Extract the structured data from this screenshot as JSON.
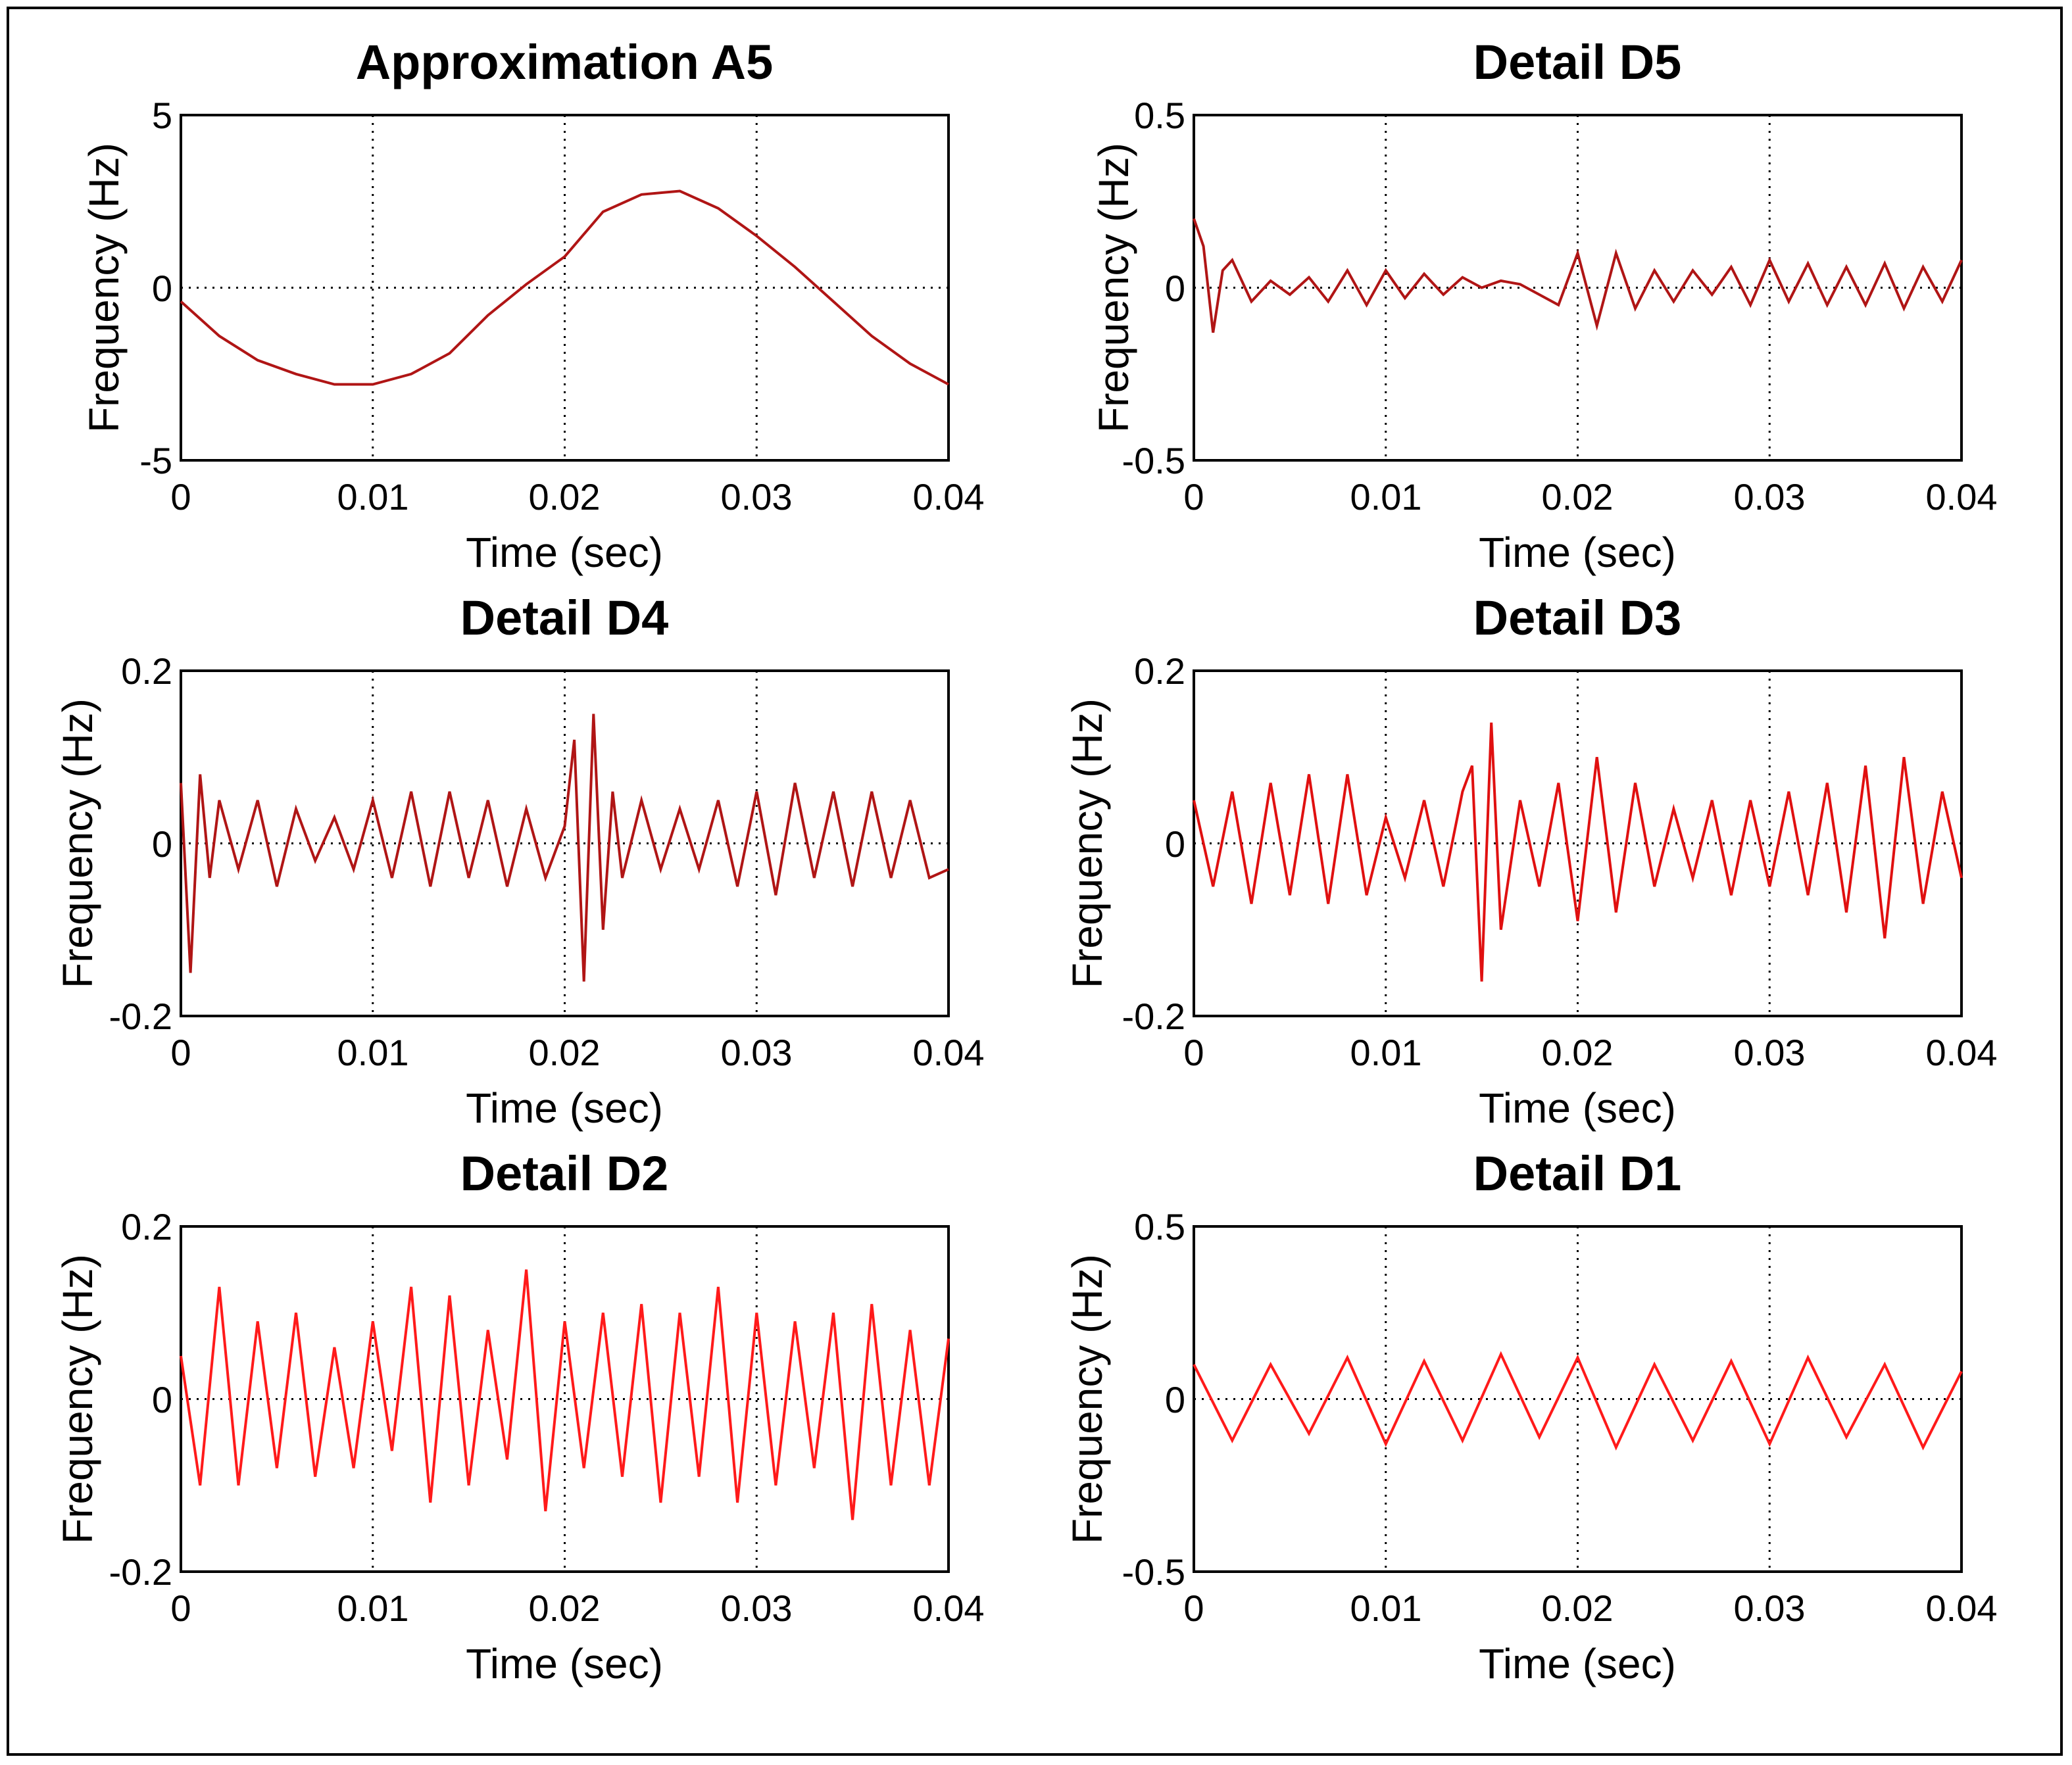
{
  "chart_data": [
    {
      "type": "line",
      "title": "Approximation A5",
      "xlabel": "Time (sec)",
      "ylabel": "Frequency (Hz)",
      "xlim": [
        0,
        0.04
      ],
      "ylim": [
        -5,
        5
      ],
      "x_ticks": [
        "0",
        "0.01",
        "0.02",
        "0.03",
        "0.04"
      ],
      "y_ticks": [
        "5",
        "0",
        "-5"
      ],
      "grid": true,
      "color": "#b01515",
      "series": [
        {
          "name": "A5",
          "x": [
            0,
            0.002,
            0.004,
            0.006,
            0.008,
            0.01,
            0.012,
            0.014,
            0.016,
            0.018,
            0.02,
            0.022,
            0.024,
            0.026,
            0.028,
            0.03,
            0.032,
            0.034,
            0.036,
            0.038,
            0.04
          ],
          "y": [
            -0.4,
            -1.4,
            -2.1,
            -2.5,
            -2.8,
            -2.8,
            -2.5,
            -1.9,
            -0.8,
            0.1,
            0.9,
            2.2,
            2.7,
            2.8,
            2.3,
            1.5,
            0.6,
            -0.4,
            -1.4,
            -2.2,
            -2.8
          ]
        }
      ]
    },
    {
      "type": "line",
      "title": "Detail D5",
      "xlabel": "Time (sec)",
      "ylabel": "Frequency (Hz)",
      "xlim": [
        0,
        0.04
      ],
      "ylim": [
        -0.5,
        0.5
      ],
      "x_ticks": [
        "0",
        "0.01",
        "0.02",
        "0.03",
        "0.04"
      ],
      "y_ticks": [
        "0.5",
        "0",
        "-0.5"
      ],
      "grid": true,
      "color": "#b01515",
      "series": [
        {
          "name": "D5",
          "x": [
            0,
            0.0005,
            0.001,
            0.0015,
            0.002,
            0.003,
            0.004,
            0.005,
            0.006,
            0.007,
            0.008,
            0.009,
            0.01,
            0.011,
            0.012,
            0.013,
            0.014,
            0.015,
            0.016,
            0.017,
            0.018,
            0.019,
            0.02,
            0.021,
            0.022,
            0.023,
            0.024,
            0.025,
            0.026,
            0.027,
            0.028,
            0.029,
            0.03,
            0.031,
            0.032,
            0.033,
            0.034,
            0.035,
            0.036,
            0.037,
            0.038,
            0.039,
            0.04
          ],
          "y": [
            0.2,
            0.12,
            -0.13,
            0.05,
            0.08,
            -0.04,
            0.02,
            -0.02,
            0.03,
            -0.04,
            0.05,
            -0.05,
            0.05,
            -0.03,
            0.04,
            -0.02,
            0.03,
            0.0,
            0.02,
            0.01,
            -0.02,
            -0.05,
            0.1,
            -0.11,
            0.1,
            -0.06,
            0.05,
            -0.04,
            0.05,
            -0.02,
            0.06,
            -0.05,
            0.08,
            -0.04,
            0.07,
            -0.05,
            0.06,
            -0.05,
            0.07,
            -0.06,
            0.06,
            -0.04,
            0.08
          ]
        }
      ]
    },
    {
      "type": "line",
      "title": "Detail D4",
      "xlabel": "Time (sec)",
      "ylabel": "Frequency (Hz)",
      "xlim": [
        0,
        0.04
      ],
      "ylim": [
        -0.2,
        0.2
      ],
      "x_ticks": [
        "0",
        "0.01",
        "0.02",
        "0.03",
        "0.04"
      ],
      "y_ticks": [
        "0.2",
        "0",
        "-0.2"
      ],
      "grid": true,
      "color": "#b01515",
      "series": [
        {
          "name": "D4",
          "x": [
            0,
            0.0005,
            0.001,
            0.0015,
            0.002,
            0.003,
            0.004,
            0.005,
            0.006,
            0.007,
            0.008,
            0.009,
            0.01,
            0.011,
            0.012,
            0.013,
            0.014,
            0.015,
            0.016,
            0.017,
            0.018,
            0.019,
            0.02,
            0.0205,
            0.021,
            0.0215,
            0.022,
            0.0225,
            0.023,
            0.024,
            0.025,
            0.026,
            0.027,
            0.028,
            0.029,
            0.03,
            0.031,
            0.032,
            0.033,
            0.034,
            0.035,
            0.036,
            0.037,
            0.038,
            0.039,
            0.04
          ],
          "y": [
            0.07,
            -0.15,
            0.08,
            -0.04,
            0.05,
            -0.03,
            0.05,
            -0.05,
            0.04,
            -0.02,
            0.03,
            -0.03,
            0.05,
            -0.04,
            0.06,
            -0.05,
            0.06,
            -0.04,
            0.05,
            -0.05,
            0.04,
            -0.04,
            0.02,
            0.12,
            -0.16,
            0.15,
            -0.1,
            0.06,
            -0.04,
            0.05,
            -0.03,
            0.04,
            -0.03,
            0.05,
            -0.05,
            0.06,
            -0.06,
            0.07,
            -0.04,
            0.06,
            -0.05,
            0.06,
            -0.04,
            0.05,
            -0.04,
            -0.03
          ]
        }
      ]
    },
    {
      "type": "line",
      "title": "Detail D3",
      "xlabel": "Time (sec)",
      "ylabel": "Frequency (Hz)",
      "xlim": [
        0,
        0.04
      ],
      "ylim": [
        -0.2,
        0.2
      ],
      "x_ticks": [
        "0",
        "0.01",
        "0.02",
        "0.03",
        "0.04"
      ],
      "y_ticks": [
        "0.2",
        "0",
        "-0.2"
      ],
      "grid": true,
      "color": "#e01010",
      "series": [
        {
          "name": "D3",
          "x": [
            0,
            0.001,
            0.002,
            0.003,
            0.004,
            0.005,
            0.006,
            0.007,
            0.008,
            0.009,
            0.01,
            0.011,
            0.012,
            0.013,
            0.014,
            0.0145,
            0.015,
            0.0155,
            0.016,
            0.017,
            0.018,
            0.019,
            0.02,
            0.021,
            0.022,
            0.023,
            0.024,
            0.025,
            0.026,
            0.027,
            0.028,
            0.029,
            0.03,
            0.031,
            0.032,
            0.033,
            0.034,
            0.035,
            0.036,
            0.037,
            0.038,
            0.039,
            0.04
          ],
          "y": [
            0.05,
            -0.05,
            0.06,
            -0.07,
            0.07,
            -0.06,
            0.08,
            -0.07,
            0.08,
            -0.06,
            0.03,
            -0.04,
            0.05,
            -0.05,
            0.06,
            0.09,
            -0.16,
            0.14,
            -0.1,
            0.05,
            -0.05,
            0.07,
            -0.09,
            0.1,
            -0.08,
            0.07,
            -0.05,
            0.04,
            -0.04,
            0.05,
            -0.06,
            0.05,
            -0.05,
            0.06,
            -0.06,
            0.07,
            -0.08,
            0.09,
            -0.11,
            0.1,
            -0.07,
            0.06,
            -0.04
          ]
        }
      ]
    },
    {
      "type": "line",
      "title": "Detail D2",
      "xlabel": "Time (sec)",
      "ylabel": "Frequency (Hz)",
      "xlim": [
        0,
        0.04
      ],
      "ylim": [
        -0.2,
        0.2
      ],
      "x_ticks": [
        "0",
        "0.01",
        "0.02",
        "0.03",
        "0.04"
      ],
      "y_ticks": [
        "0.2",
        "0",
        "-0.2"
      ],
      "grid": true,
      "color": "#ff1a1a",
      "series": [
        {
          "name": "D2",
          "x": [
            0,
            0.001,
            0.002,
            0.003,
            0.004,
            0.005,
            0.006,
            0.007,
            0.008,
            0.009,
            0.01,
            0.011,
            0.012,
            0.013,
            0.014,
            0.015,
            0.016,
            0.017,
            0.018,
            0.019,
            0.02,
            0.021,
            0.022,
            0.023,
            0.024,
            0.025,
            0.026,
            0.027,
            0.028,
            0.029,
            0.03,
            0.031,
            0.032,
            0.033,
            0.034,
            0.035,
            0.036,
            0.037,
            0.038,
            0.039,
            0.04
          ],
          "y": [
            0.05,
            -0.1,
            0.13,
            -0.1,
            0.09,
            -0.08,
            0.1,
            -0.09,
            0.06,
            -0.08,
            0.09,
            -0.06,
            0.13,
            -0.12,
            0.12,
            -0.1,
            0.08,
            -0.07,
            0.15,
            -0.13,
            0.09,
            -0.08,
            0.1,
            -0.09,
            0.11,
            -0.12,
            0.1,
            -0.09,
            0.13,
            -0.12,
            0.1,
            -0.1,
            0.09,
            -0.08,
            0.1,
            -0.14,
            0.11,
            -0.1,
            0.08,
            -0.1,
            0.07
          ]
        }
      ]
    },
    {
      "type": "line",
      "title": "Detail D1",
      "xlabel": "Time (sec)",
      "ylabel": "Frequency (Hz)",
      "xlim": [
        0,
        0.04
      ],
      "ylim": [
        -0.5,
        0.5
      ],
      "x_ticks": [
        "0",
        "0.01",
        "0.02",
        "0.03",
        "0.04"
      ],
      "y_ticks": [
        "0.5",
        "0",
        "-0.5"
      ],
      "grid": true,
      "color": "#ff1a1a",
      "series": [
        {
          "name": "D1",
          "x": [
            0,
            0.002,
            0.004,
            0.006,
            0.008,
            0.01,
            0.012,
            0.014,
            0.016,
            0.018,
            0.02,
            0.022,
            0.024,
            0.026,
            0.028,
            0.03,
            0.032,
            0.034,
            0.036,
            0.038,
            0.04
          ],
          "y": [
            0.1,
            -0.12,
            0.1,
            -0.1,
            0.12,
            -0.13,
            0.11,
            -0.12,
            0.13,
            -0.11,
            0.12,
            -0.14,
            0.1,
            -0.12,
            0.11,
            -0.13,
            0.12,
            -0.11,
            0.1,
            -0.14,
            0.08
          ]
        }
      ]
    }
  ]
}
